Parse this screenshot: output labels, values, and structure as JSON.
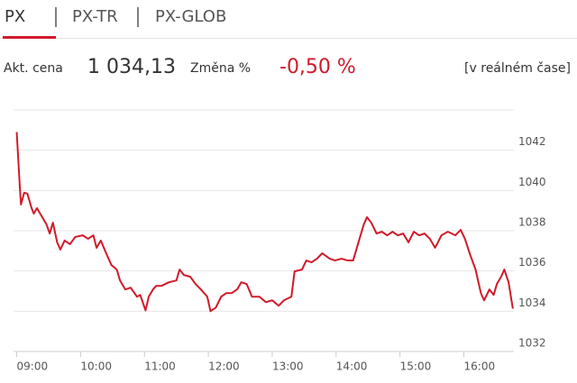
{
  "tabs": [
    "PX",
    "PX-TR",
    "PX-GLOB"
  ],
  "quote": {
    "price_label": "Akt. cena",
    "price": "1 034,13",
    "change_label": "Změna %",
    "change": "-0,50 %",
    "mode": "[v reálném čase]"
  },
  "chart_data": {
    "type": "line",
    "color": "#d11a2a",
    "grid": true,
    "x": [
      540,
      543,
      544,
      547,
      550,
      554,
      556,
      559,
      563,
      568,
      571,
      574,
      578,
      581,
      585,
      590,
      595,
      602,
      607,
      612,
      615,
      619,
      624,
      629,
      634,
      637,
      642,
      647,
      653,
      656,
      661,
      664,
      668,
      671,
      676,
      683,
      690,
      693,
      697,
      703,
      708,
      713,
      719,
      722,
      727,
      732,
      737,
      742,
      747,
      751,
      756,
      761,
      768,
      774,
      780,
      786,
      791,
      798,
      801,
      808,
      812,
      817,
      822,
      827,
      834,
      839,
      845,
      851,
      856,
      861,
      866,
      869,
      873,
      878,
      883,
      888,
      893,
      898,
      903,
      908,
      913,
      918,
      923,
      928,
      933,
      939,
      945,
      952,
      957,
      961,
      966,
      971,
      976,
      979,
      984,
      988,
      991,
      995,
      998,
      1002,
      1006
    ],
    "values": [
      1042.9,
      1040.11,
      1039.3,
      1039.89,
      1039.84,
      1039.12,
      1038.85,
      1039.12,
      1038.76,
      1038.31,
      1037.86,
      1038.4,
      1037.42,
      1037.06,
      1037.51,
      1037.33,
      1037.69,
      1037.77,
      1037.6,
      1037.77,
      1037.15,
      1037.51,
      1036.88,
      1036.29,
      1036.07,
      1035.53,
      1035.08,
      1035.17,
      1034.72,
      1034.81,
      1034.04,
      1034.72,
      1035.08,
      1035.26,
      1035.26,
      1035.44,
      1035.53,
      1036.07,
      1035.8,
      1035.71,
      1035.35,
      1035.08,
      1034.72,
      1034.0,
      1034.18,
      1034.72,
      1034.9,
      1034.9,
      1035.08,
      1035.44,
      1035.35,
      1034.72,
      1034.72,
      1034.45,
      1034.54,
      1034.27,
      1034.54,
      1034.72,
      1035.98,
      1036.07,
      1036.52,
      1036.43,
      1036.61,
      1036.88,
      1036.61,
      1036.52,
      1036.61,
      1036.52,
      1036.52,
      1037.42,
      1038.31,
      1038.67,
      1038.4,
      1037.86,
      1037.95,
      1037.77,
      1037.95,
      1037.77,
      1037.86,
      1037.42,
      1037.95,
      1037.77,
      1037.86,
      1037.6,
      1037.15,
      1037.77,
      1037.95,
      1037.77,
      1038.04,
      1037.6,
      1036.79,
      1036.07,
      1034.9,
      1034.54,
      1035.08,
      1034.81,
      1035.35,
      1035.71,
      1036.07,
      1035.44,
      1034.13
    ],
    "xlim": [
      537,
      1007
    ],
    "xticks": [
      {
        "value": 540,
        "label": "09:00"
      },
      {
        "value": 600,
        "label": "10:00"
      },
      {
        "value": 660,
        "label": "11:00"
      },
      {
        "value": 720,
        "label": "12:00"
      },
      {
        "value": 780,
        "label": "13:00"
      },
      {
        "value": 840,
        "label": "14:00"
      },
      {
        "value": 900,
        "label": "15:00"
      },
      {
        "value": 960,
        "label": "16:00"
      }
    ],
    "ylim": [
      1032,
      1044
    ],
    "yticks": [
      1032,
      1034,
      1036,
      1038,
      1040,
      1042
    ]
  }
}
